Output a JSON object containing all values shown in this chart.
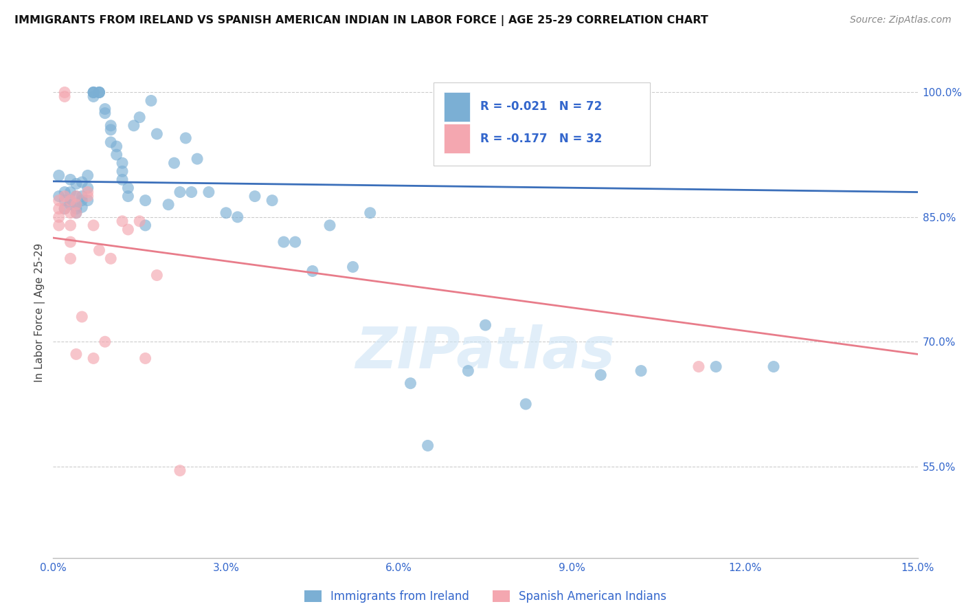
{
  "title": "IMMIGRANTS FROM IRELAND VS SPANISH AMERICAN INDIAN IN LABOR FORCE | AGE 25-29 CORRELATION CHART",
  "source": "Source: ZipAtlas.com",
  "ylabel": "In Labor Force | Age 25-29",
  "xlim": [
    0.0,
    0.15
  ],
  "ylim": [
    0.44,
    1.03
  ],
  "xticks": [
    0.0,
    0.03,
    0.06,
    0.09,
    0.12,
    0.15
  ],
  "xticklabels": [
    "0.0%",
    "3.0%",
    "6.0%",
    "9.0%",
    "12.0%",
    "15.0%"
  ],
  "yticks_right": [
    0.55,
    0.7,
    0.85,
    1.0
  ],
  "ytick_right_labels": [
    "55.0%",
    "70.0%",
    "85.0%",
    "100.0%"
  ],
  "blue_color": "#7bafd4",
  "pink_color": "#f4a7b0",
  "blue_line_color": "#3b6fba",
  "pink_line_color": "#e87c8a",
  "blue_label": "Immigrants from Ireland",
  "pink_label": "Spanish American Indians",
  "legend_R_blue": "R = -0.021",
  "legend_N_blue": "N = 72",
  "legend_R_pink": "R = -0.177",
  "legend_N_pink": "N = 32",
  "watermark": "ZIPatlas",
  "blue_x": [
    0.001,
    0.001,
    0.002,
    0.002,
    0.002,
    0.003,
    0.003,
    0.003,
    0.003,
    0.004,
    0.004,
    0.004,
    0.004,
    0.004,
    0.005,
    0.005,
    0.005,
    0.005,
    0.006,
    0.006,
    0.006,
    0.007,
    0.007,
    0.007,
    0.007,
    0.008,
    0.008,
    0.008,
    0.009,
    0.009,
    0.01,
    0.01,
    0.01,
    0.011,
    0.011,
    0.012,
    0.012,
    0.012,
    0.013,
    0.013,
    0.014,
    0.015,
    0.016,
    0.016,
    0.017,
    0.018,
    0.02,
    0.021,
    0.022,
    0.023,
    0.024,
    0.025,
    0.027,
    0.03,
    0.032,
    0.035,
    0.038,
    0.04,
    0.042,
    0.045,
    0.048,
    0.052,
    0.055,
    0.062,
    0.065,
    0.072,
    0.075,
    0.082,
    0.095,
    0.102,
    0.115,
    0.125
  ],
  "blue_y": [
    0.875,
    0.9,
    0.88,
    0.87,
    0.86,
    0.895,
    0.88,
    0.87,
    0.865,
    0.89,
    0.875,
    0.865,
    0.86,
    0.855,
    0.892,
    0.875,
    0.87,
    0.862,
    0.9,
    0.885,
    0.87,
    1.0,
    1.0,
    1.0,
    0.995,
    1.0,
    1.0,
    1.0,
    0.98,
    0.975,
    0.96,
    0.955,
    0.94,
    0.935,
    0.925,
    0.915,
    0.905,
    0.895,
    0.885,
    0.875,
    0.96,
    0.97,
    0.87,
    0.84,
    0.99,
    0.95,
    0.865,
    0.915,
    0.88,
    0.945,
    0.88,
    0.92,
    0.88,
    0.855,
    0.85,
    0.875,
    0.87,
    0.82,
    0.82,
    0.785,
    0.84,
    0.79,
    0.855,
    0.65,
    0.575,
    0.665,
    0.72,
    0.625,
    0.66,
    0.665,
    0.67,
    0.67
  ],
  "pink_x": [
    0.001,
    0.001,
    0.001,
    0.001,
    0.002,
    0.002,
    0.002,
    0.002,
    0.003,
    0.003,
    0.003,
    0.003,
    0.003,
    0.004,
    0.004,
    0.004,
    0.004,
    0.005,
    0.006,
    0.006,
    0.007,
    0.007,
    0.008,
    0.009,
    0.01,
    0.012,
    0.013,
    0.015,
    0.016,
    0.018,
    0.022,
    0.112
  ],
  "pink_y": [
    0.87,
    0.86,
    0.85,
    0.84,
    1.0,
    0.995,
    0.875,
    0.86,
    0.87,
    0.855,
    0.84,
    0.82,
    0.8,
    0.875,
    0.865,
    0.855,
    0.685,
    0.73,
    0.88,
    0.875,
    0.84,
    0.68,
    0.81,
    0.7,
    0.8,
    0.845,
    0.835,
    0.845,
    0.68,
    0.78,
    0.545,
    0.67
  ],
  "blue_trend_x": [
    0.0,
    0.15
  ],
  "blue_trend_y": [
    0.893,
    0.88
  ],
  "pink_trend_x": [
    0.0,
    0.15
  ],
  "pink_trend_y": [
    0.825,
    0.685
  ]
}
